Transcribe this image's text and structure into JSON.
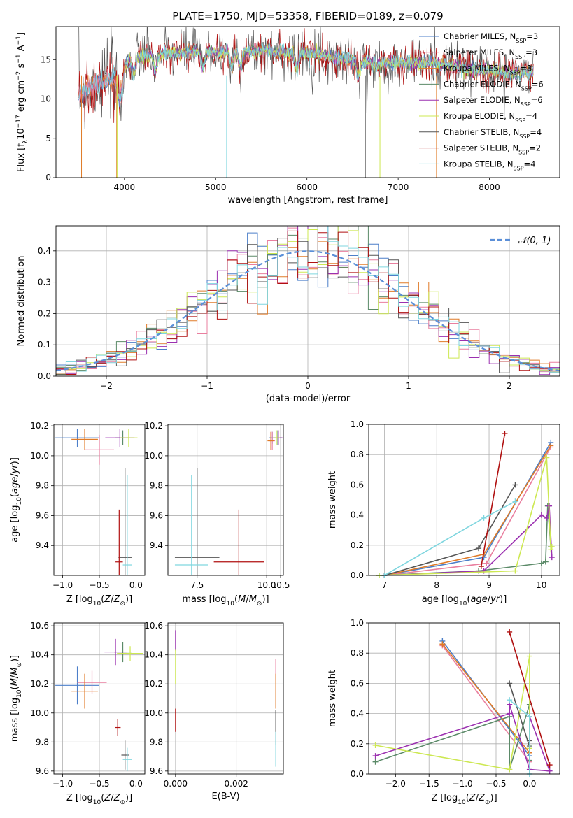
{
  "figure": {
    "title": "PLATE=1750, MJD=53358, FIBERID=0189, z=0.079"
  },
  "colors": {
    "Chabrier MILES": "#4c7fc9",
    "Salpeter MILES": "#e97f9f",
    "Kroupa MILES": "#e07b28",
    "Chabrier ELODIE": "#5b8a68",
    "Salpeter ELODIE": "#9b30b0",
    "Kroupa ELODIE": "#cde852",
    "Chabrier STELIB": "#555555",
    "Salpeter STELIB": "#b01010",
    "Kroupa STELIB": "#7fd6df",
    "normal": "#5b8fd8"
  },
  "chart_data": [
    {
      "id": "spectrum",
      "type": "line",
      "xlabel": "wavelength [Angstrom, rest frame]",
      "ylabel": "Flux [f_λ10^-17 erg cm^-2 s^-1 A^-1]",
      "xlim": [
        3250,
        8770
      ],
      "ylim": [
        0,
        19.2
      ],
      "grid": false,
      "xticks": [
        4000,
        5000,
        6000,
        7000,
        8000
      ],
      "yticks": [
        0,
        5,
        10,
        15
      ],
      "legend_position": "upper right",
      "legend": [
        {
          "name": "Chabrier MILES",
          "nssp": "3"
        },
        {
          "name": "Salpeter MILES",
          "nssp": "3"
        },
        {
          "name": "Kroupa MILES",
          "nssp": "3"
        },
        {
          "name": "Chabrier ELODIE",
          "nssp": "6"
        },
        {
          "name": "Salpeter ELODIE",
          "nssp": "6"
        },
        {
          "name": "Kroupa ELODIE",
          "nssp": "4"
        },
        {
          "name": "Chabrier STELIB",
          "nssp": "4"
        },
        {
          "name": "Salpeter STELIB",
          "nssp": "2"
        },
        {
          "name": "Kroupa STELIB",
          "nssp": "4"
        }
      ],
      "continuum_x": [
        3500,
        3650,
        3800,
        3950,
        4050,
        4250,
        4500,
        4750,
        5000,
        5250,
        5500,
        5750,
        6000,
        6250,
        6500,
        6750,
        7000,
        7250,
        7500,
        7750,
        8000,
        8250,
        8500
      ],
      "continuum_y": [
        10.5,
        11.8,
        12.3,
        12.8,
        15.0,
        15.6,
        15.8,
        16.0,
        15.9,
        16.0,
        16.1,
        15.9,
        15.9,
        15.4,
        14.9,
        14.5,
        14.5,
        14.6,
        14.4,
        13.8,
        13.6,
        13.3,
        13.4
      ],
      "absorption_lines": [
        3934,
        3968,
        4102,
        4340,
        4861,
        5175,
        5270,
        5890,
        6563
      ],
      "drop_lines": [
        {
          "series": "Kroupa MILES",
          "x": 3530
        },
        {
          "series": "Kroupa MILES",
          "x": 3915
        },
        {
          "series": "Kroupa ELODIE",
          "x": 3920
        },
        {
          "series": "Kroupa STELIB",
          "x": 5120
        },
        {
          "series": "Kroupa ELODIE",
          "x": 6800
        },
        {
          "series": "Chabrier STELIB",
          "x": 6640
        },
        {
          "series": "Kroupa MILES",
          "x": 7420
        }
      ]
    },
    {
      "id": "residuals",
      "type": "line",
      "xlabel": "(data-model)/error",
      "ylabel": "Normed distribution",
      "xlim": [
        -2.5,
        2.5
      ],
      "ylim": [
        0,
        0.48
      ],
      "grid": true,
      "xticks": [
        -2,
        -1,
        0,
        1,
        2
      ],
      "yticks": [
        0.0,
        0.1,
        0.2,
        0.3,
        0.4
      ],
      "legend_position": "upper right",
      "legend": [
        {
          "name": "N(0,1)"
        }
      ],
      "bin_width": 0.1,
      "bin_start": -2.5,
      "reference": "normal pdf mean 0 sigma 1"
    },
    {
      "id": "age_vs_Z",
      "type": "scatter",
      "xlabel": "Z [log10(Z/Z☉)]",
      "ylabel": "age  [log10(age/yr)]",
      "xlim": [
        -1.12,
        0.12
      ],
      "ylim": [
        9.2,
        10.21
      ],
      "grid": true,
      "xticks": [
        -1.0,
        -0.5,
        0.0
      ],
      "yticks": [
        9.4,
        9.6,
        9.8,
        10.0,
        10.2
      ],
      "points": [
        {
          "series": "Chabrier MILES",
          "x": -0.8,
          "y": 10.12,
          "xerr": 0.3,
          "yerr": 0.06
        },
        {
          "series": "Salpeter MILES",
          "x": -0.5,
          "y": 10.04,
          "xerr": 0.2,
          "yerr": 0.1
        },
        {
          "series": "Kroupa MILES",
          "x": -0.7,
          "y": 10.11,
          "xerr": 0.18,
          "yerr": 0.07
        },
        {
          "series": "Chabrier ELODIE",
          "x": -0.18,
          "y": 10.12,
          "xerr": 0.1,
          "yerr": 0.05
        },
        {
          "series": "Salpeter ELODIE",
          "x": -0.22,
          "y": 10.12,
          "xerr": 0.2,
          "yerr": 0.06
        },
        {
          "series": "Kroupa ELODIE",
          "x": -0.1,
          "y": 10.12,
          "xerr": 0.12,
          "yerr": 0.06
        },
        {
          "series": "Chabrier STELIB",
          "x": -0.15,
          "y": 9.32,
          "xerr": 0.09,
          "yerr": 0.6
        },
        {
          "series": "Salpeter STELIB",
          "x": -0.23,
          "y": 9.29,
          "xerr": 0.05,
          "yerr": 0.35
        },
        {
          "series": "Kroupa STELIB",
          "x": -0.12,
          "y": 9.27,
          "xerr": 0.06,
          "yerr": 0.6
        }
      ]
    },
    {
      "id": "age_vs_mass",
      "type": "scatter",
      "xlabel": "mass [log10(M/M☉)]",
      "ylabel": "",
      "xlim": [
        6.45,
        10.6
      ],
      "ylim": [
        9.2,
        10.21
      ],
      "grid": true,
      "xticks": [
        7.5,
        10.0,
        12.5
      ],
      "yticks": [
        9.4,
        9.6,
        9.8,
        10.0,
        10.2
      ],
      "points": [
        {
          "series": "Chabrier MILES",
          "x": 10.2,
          "y": 10.12,
          "xerr": 0.12,
          "yerr": 0.04
        },
        {
          "series": "Salpeter MILES",
          "x": 10.2,
          "y": 10.1,
          "xerr": 0.1,
          "yerr": 0.06
        },
        {
          "series": "Kroupa MILES",
          "x": 10.15,
          "y": 10.1,
          "xerr": 0.12,
          "yerr": 0.06
        },
        {
          "series": "Chabrier ELODIE",
          "x": 10.4,
          "y": 10.12,
          "xerr": 0.15,
          "yerr": 0.05
        },
        {
          "series": "Salpeter ELODIE",
          "x": 10.42,
          "y": 10.12,
          "xerr": 0.15,
          "yerr": 0.05
        },
        {
          "series": "Kroupa ELODIE",
          "x": 10.35,
          "y": 10.12,
          "xerr": 0.12,
          "yerr": 0.05
        },
        {
          "series": "Chabrier STELIB",
          "x": 7.5,
          "y": 9.32,
          "xerr": 0.8,
          "yerr": 0.6
        },
        {
          "series": "Salpeter STELIB",
          "x": 9.0,
          "y": 9.29,
          "xerr": 0.9,
          "yerr": 0.35
        },
        {
          "series": "Kroupa STELIB",
          "x": 7.3,
          "y": 9.27,
          "xerr": 0.6,
          "yerr": 0.6
        }
      ]
    },
    {
      "id": "massweight_vs_age",
      "type": "line",
      "xlabel": "age  [log10(age/yr)]",
      "ylabel": "mass weight",
      "xlim": [
        6.7,
        10.35
      ],
      "ylim": [
        0,
        1.0
      ],
      "grid": true,
      "xticks": [
        7,
        8,
        9,
        10
      ],
      "yticks": [
        0.0,
        0.2,
        0.4,
        0.6,
        0.8,
        1.0
      ],
      "series": [
        {
          "name": "Chabrier MILES",
          "x": [
            7.0,
            8.9,
            10.18
          ],
          "y": [
            0.0,
            0.12,
            0.88
          ]
        },
        {
          "name": "Salpeter MILES",
          "x": [
            7.0,
            8.95,
            10.18
          ],
          "y": [
            0.0,
            0.08,
            0.85
          ]
        },
        {
          "name": "Kroupa MILES",
          "x": [
            7.0,
            8.9,
            10.18
          ],
          "y": [
            0.0,
            0.14,
            0.86
          ]
        },
        {
          "name": "Chabrier ELODIE",
          "x": [
            6.9,
            8.8,
            10.0,
            10.08,
            10.12,
            10.18
          ],
          "y": [
            0.0,
            0.03,
            0.08,
            0.09,
            0.46,
            0.19
          ]
        },
        {
          "name": "Salpeter ELODIE",
          "x": [
            7.0,
            8.9,
            10.0,
            10.1,
            10.15,
            10.2
          ],
          "y": [
            0.0,
            0.03,
            0.4,
            0.38,
            0.46,
            0.12
          ]
        },
        {
          "name": "Kroupa ELODIE",
          "x": [
            6.9,
            9.5,
            10.1,
            10.18,
            10.2
          ],
          "y": [
            0.0,
            0.03,
            0.78,
            0.17,
            0.19
          ]
        },
        {
          "name": "Chabrier STELIB",
          "x": [
            7.0,
            8.8,
            9.5
          ],
          "y": [
            0.0,
            0.18,
            0.6
          ]
        },
        {
          "name": "Salpeter STELIB",
          "x": [
            8.85,
            9.3
          ],
          "y": [
            0.06,
            0.94
          ]
        },
        {
          "name": "Kroupa STELIB",
          "x": [
            7.0,
            8.9,
            9.5
          ],
          "y": [
            0.0,
            0.38,
            0.49
          ]
        }
      ]
    },
    {
      "id": "mass_vs_Z",
      "type": "scatter",
      "xlabel": "Z [log10(Z/Z☉)]",
      "ylabel": "mass [log10(M/M☉)]",
      "xlim": [
        -1.12,
        0.12
      ],
      "ylim": [
        9.58,
        10.62
      ],
      "grid": true,
      "xticks": [
        -1.0,
        -0.5,
        0.0
      ],
      "yticks": [
        9.6,
        9.8,
        10.0,
        10.2,
        10.4,
        10.6
      ],
      "points": [
        {
          "series": "Chabrier MILES",
          "x": -0.8,
          "y": 10.19,
          "xerr": 0.3,
          "yerr": 0.13
        },
        {
          "series": "Salpeter MILES",
          "x": -0.6,
          "y": 10.21,
          "xerr": 0.2,
          "yerr": 0.08
        },
        {
          "series": "Kroupa MILES",
          "x": -0.7,
          "y": 10.15,
          "xerr": 0.18,
          "yerr": 0.12
        },
        {
          "series": "Chabrier ELODIE",
          "x": -0.18,
          "y": 10.42,
          "xerr": 0.12,
          "yerr": 0.07
        },
        {
          "series": "Salpeter ELODIE",
          "x": -0.28,
          "y": 10.42,
          "xerr": 0.15,
          "yerr": 0.09
        },
        {
          "series": "Kroupa ELODIE",
          "x": -0.08,
          "y": 10.41,
          "xerr": 0.18,
          "yerr": 0.05
        },
        {
          "series": "Chabrier STELIB",
          "x": -0.15,
          "y": 9.71,
          "xerr": 0.05,
          "yerr": 0.1
        },
        {
          "series": "Salpeter STELIB",
          "x": -0.25,
          "y": 9.9,
          "xerr": 0.04,
          "yerr": 0.06
        },
        {
          "series": "Kroupa STELIB",
          "x": -0.12,
          "y": 9.68,
          "xerr": 0.06,
          "yerr": 0.08
        }
      ]
    },
    {
      "id": "mass_vs_EBV",
      "type": "scatter",
      "xlabel": "E(B-V)",
      "ylabel": "",
      "xlim": [
        -0.00025,
        0.00355
      ],
      "ylim": [
        9.58,
        10.62
      ],
      "grid": true,
      "xticks": [
        0.0,
        0.002
      ],
      "yticks": [
        9.6,
        9.8,
        10.0,
        10.2,
        10.4,
        10.6
      ],
      "points": [
        {
          "series": "Salpeter ELODIE",
          "x": 0.0,
          "y": 10.5,
          "yerr": 0.07
        },
        {
          "series": "Kroupa ELODIE",
          "x": 0.0,
          "y": 10.32,
          "yerr": 0.12
        },
        {
          "series": "Salpeter STELIB",
          "x": 0.0,
          "y": 9.95,
          "yerr": 0.08
        },
        {
          "series": "Salpeter MILES",
          "x": 0.0033,
          "y": 10.3,
          "yerr": 0.07
        },
        {
          "series": "Kroupa MILES",
          "x": 0.0033,
          "y": 10.15,
          "yerr": 0.12
        },
        {
          "series": "Chabrier STELIB",
          "x": 0.0033,
          "y": 9.9,
          "yerr": 0.12
        },
        {
          "series": "Kroupa STELIB",
          "x": 0.0033,
          "y": 9.75,
          "yerr": 0.12
        }
      ]
    },
    {
      "id": "massweight_vs_Z",
      "type": "line",
      "xlabel": "Z [log10(Z/Z☉)]",
      "ylabel": "mass weight",
      "xlim": [
        -2.4,
        0.45
      ],
      "ylim": [
        0,
        1.0
      ],
      "grid": true,
      "xticks": [
        -2.0,
        -1.5,
        -1.0,
        -0.5,
        0.0
      ],
      "yticks": [
        0.0,
        0.2,
        0.4,
        0.6,
        0.8,
        1.0
      ],
      "series": [
        {
          "name": "Chabrier MILES",
          "x": [
            -1.3,
            0.0
          ],
          "y": [
            0.88,
            0.12
          ]
        },
        {
          "name": "Salpeter MILES",
          "x": [
            -1.3,
            0.0
          ],
          "y": [
            0.85,
            0.08
          ]
        },
        {
          "name": "Kroupa MILES",
          "x": [
            -1.3,
            0.0
          ],
          "y": [
            0.86,
            0.14
          ]
        },
        {
          "name": "Chabrier ELODIE",
          "x": [
            -2.3,
            -0.3,
            -0.3,
            0.0,
            0.0,
            0.0
          ],
          "y": [
            0.08,
            0.38,
            0.03,
            0.46,
            0.19,
            0.09
          ]
        },
        {
          "name": "Salpeter ELODIE",
          "x": [
            -2.3,
            -0.3,
            -0.3,
            0.0,
            0.3,
            0.0
          ],
          "y": [
            0.12,
            0.4,
            0.46,
            0.03,
            0.02,
            0.38
          ]
        },
        {
          "name": "Kroupa ELODIE",
          "x": [
            -2.3,
            -0.3,
            0.0,
            0.0
          ],
          "y": [
            0.19,
            0.03,
            0.78,
            0.17
          ]
        },
        {
          "name": "Chabrier STELIB",
          "x": [
            -0.3,
            0.0,
            0.0
          ],
          "y": [
            0.6,
            0.18,
            0.22
          ]
        },
        {
          "name": "Salpeter STELIB",
          "x": [
            -0.3,
            0.3
          ],
          "y": [
            0.94,
            0.06
          ]
        },
        {
          "name": "Kroupa STELIB",
          "x": [
            -0.3,
            0.0,
            0.0
          ],
          "y": [
            0.49,
            0.38,
            0.0
          ]
        }
      ]
    }
  ]
}
